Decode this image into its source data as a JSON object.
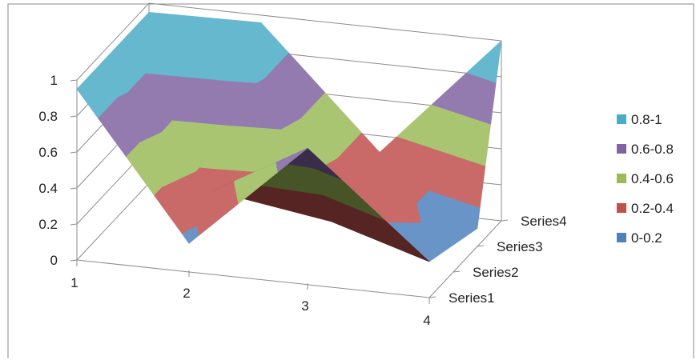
{
  "chart_data": {
    "type": "surface-3d",
    "x_categories": [
      "1",
      "2",
      "3",
      "4"
    ],
    "series": [
      {
        "name": "Series1",
        "values": [
          0.95,
          0.15,
          0.75,
          0.2
        ]
      },
      {
        "name": "Series2",
        "values": [
          0.95,
          0.3,
          0.2,
          0.15
        ]
      },
      {
        "name": "Series3",
        "values": [
          0.95,
          0.95,
          0.3,
          0.1
        ]
      },
      {
        "name": "Series4",
        "values": [
          0.95,
          0.95,
          0.3,
          1.0
        ]
      }
    ],
    "z_axis": {
      "ticks": [
        "0",
        "0.2",
        "0.4",
        "0.6",
        "0.8",
        "1"
      ],
      "range": [
        0,
        1
      ]
    },
    "legend": {
      "placement": "right",
      "items": [
        {
          "label": "0.8-1",
          "color": "#4BACC6"
        },
        {
          "label": "0.6-0.8",
          "color": "#8064A2"
        },
        {
          "label": "0.4-0.6",
          "color": "#9BBB59"
        },
        {
          "label": "0.2-0.4",
          "color": "#C0504D"
        },
        {
          "label": "0-0.2",
          "color": "#4F81BD"
        }
      ]
    },
    "gridlines": true
  }
}
